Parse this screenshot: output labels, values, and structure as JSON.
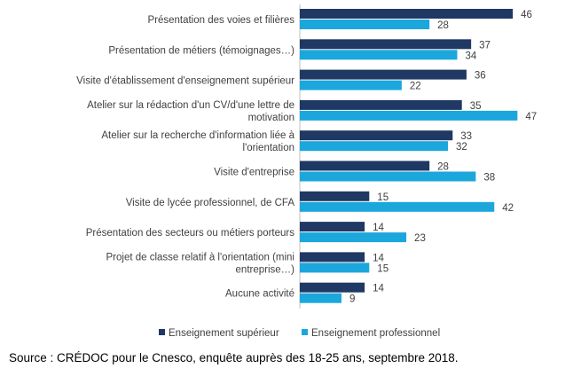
{
  "chart_data": {
    "type": "bar",
    "orientation": "horizontal",
    "categories": [
      [
        "Présentation des voies et filières"
      ],
      [
        "Présentation de métiers (témoignages…)"
      ],
      [
        "Visite d'établissement d'enseignement supérieur"
      ],
      [
        "Atelier sur la rédaction d'un CV/d'une lettre de",
        "motivation"
      ],
      [
        "Atelier sur la recherche d'information liée à",
        "l'orientation"
      ],
      [
        "Visite d'entreprise"
      ],
      [
        "Visite de lycée professionnel, de CFA"
      ],
      [
        "Présentation des secteurs ou métiers porteurs"
      ],
      [
        "Projet de classe relatif à l'orientation (mini",
        "entreprise…)"
      ],
      [
        "Aucune activité"
      ]
    ],
    "series": [
      {
        "name": "Enseignement supérieur",
        "color": "#1f3864",
        "values": [
          46,
          37,
          36,
          35,
          33,
          28,
          15,
          14,
          14,
          14
        ]
      },
      {
        "name": "Enseignement professionnel",
        "color": "#1ca7dc",
        "values": [
          28,
          34,
          22,
          47,
          32,
          38,
          42,
          23,
          15,
          9
        ]
      }
    ],
    "xlim": [
      0,
      50
    ],
    "grid": false,
    "legend_position": "bottom"
  },
  "source": "Source : CRÉDOC pour le Cnesco, enquête auprès des 18-25 ans, septembre 2018."
}
